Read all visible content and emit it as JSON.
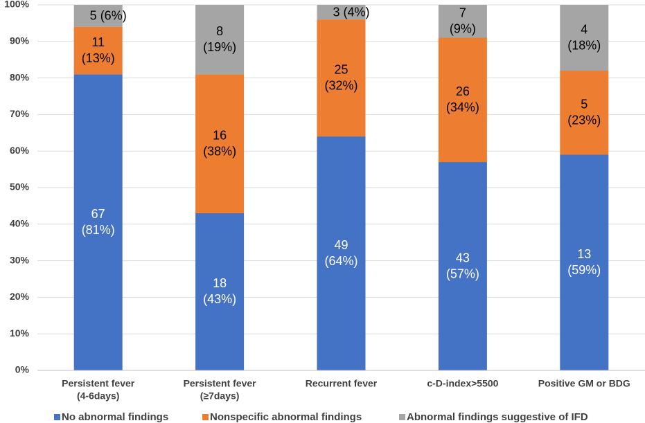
{
  "chart_data": {
    "type": "stacked_bar",
    "categories": [
      [
        "Persistent fever",
        "(4-6days)"
      ],
      [
        "Persistent fever",
        "(≥7days)"
      ],
      [
        "Recurrent fever"
      ],
      [
        "c-D-index>5500"
      ],
      [
        "Positive GM or BDG"
      ]
    ],
    "series": [
      {
        "name": "No abnormal findings",
        "color": "#4472c4",
        "label_color": "#ffffff",
        "values": [
          81,
          43,
          64,
          57,
          59
        ],
        "value_labels": [
          "(81%)",
          "(43%)",
          "(64%)",
          "(57%)",
          "(59%)"
        ],
        "counts": [
          "67",
          "18",
          "49",
          "43",
          "13"
        ]
      },
      {
        "name": "Nonspecific abnormal findings",
        "color": "#ed7d31",
        "label_color": "#000000",
        "values": [
          13,
          38,
          32,
          34,
          23
        ],
        "value_labels": [
          "(13%)",
          "(38%)",
          "(32%)",
          "(34%)",
          "(23%)"
        ],
        "counts": [
          "11",
          "16",
          "25",
          "26",
          "5"
        ]
      },
      {
        "name": "Abnormal findings suggestive of IFD",
        "color": "#a5a5a5",
        "label_color": "#000000",
        "values": [
          6,
          19,
          4,
          9,
          18
        ],
        "value_labels": [
          "(6%)",
          "(19%)",
          "(4%)",
          "(9%)",
          "(18%)"
        ],
        "counts": [
          "5",
          "8",
          "3",
          "7",
          "4"
        ]
      }
    ],
    "ylim": [
      0,
      100
    ],
    "yticks": [
      {
        "value": 0,
        "label": "0%"
      },
      {
        "value": 10,
        "label": "10%"
      },
      {
        "value": 20,
        "label": "20%"
      },
      {
        "value": 30,
        "label": "30%"
      },
      {
        "value": 40,
        "label": "40%"
      },
      {
        "value": 50,
        "label": "50%"
      },
      {
        "value": 60,
        "label": "60%"
      },
      {
        "value": 70,
        "label": "70%"
      },
      {
        "value": 80,
        "label": "80%"
      },
      {
        "value": 90,
        "label": "90%"
      },
      {
        "value": 100,
        "label": "100%"
      }
    ],
    "grid": true,
    "legend": "bottom"
  }
}
